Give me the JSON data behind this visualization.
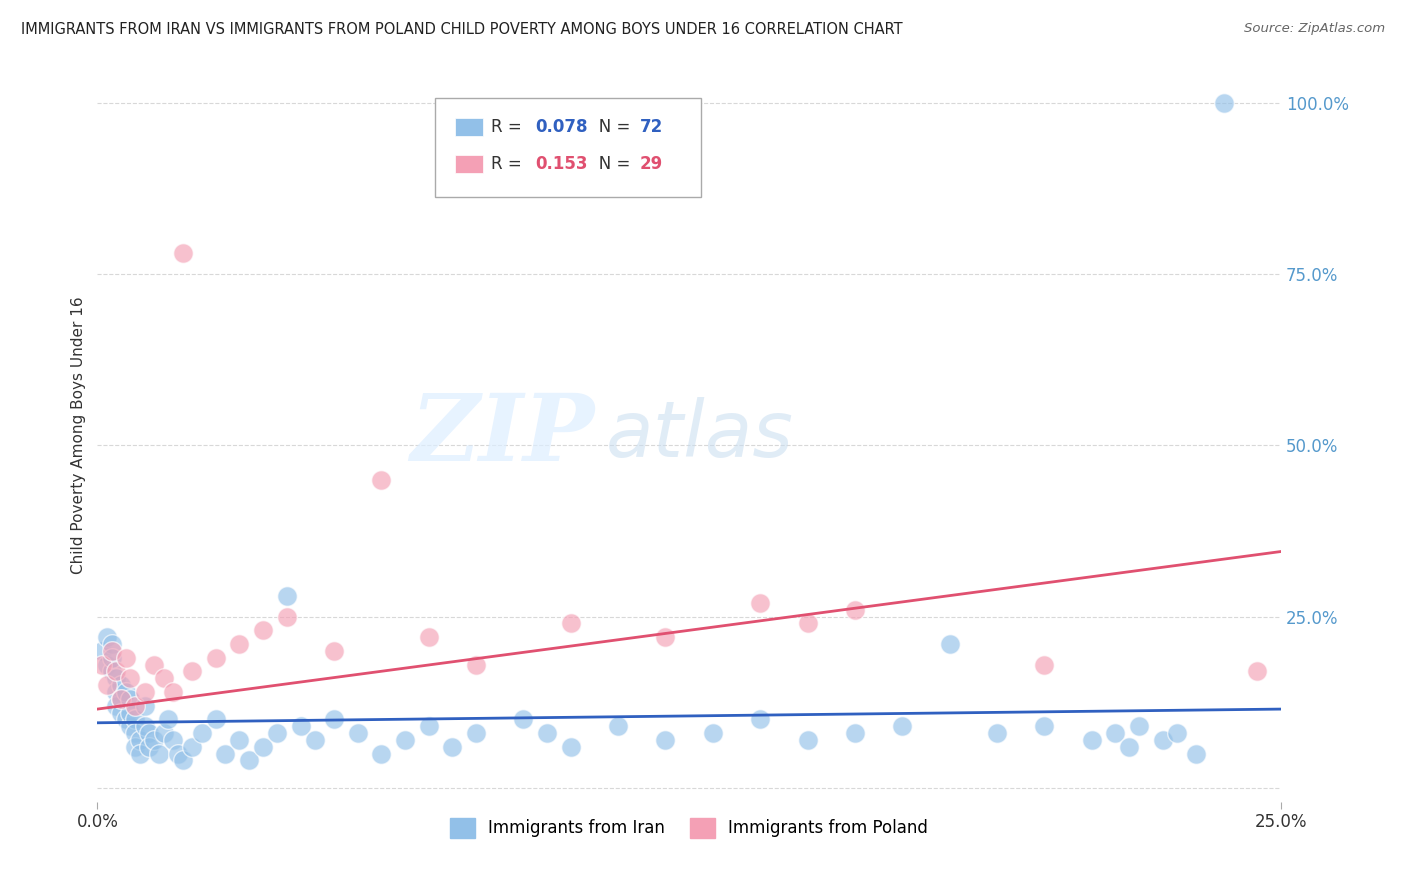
{
  "title": "IMMIGRANTS FROM IRAN VS IMMIGRANTS FROM POLAND CHILD POVERTY AMONG BOYS UNDER 16 CORRELATION CHART",
  "source": "Source: ZipAtlas.com",
  "ylabel": "Child Poverty Among Boys Under 16",
  "xlim": [
    0.0,
    0.25
  ],
  "ylim": [
    -0.02,
    1.05
  ],
  "xtick_labels": [
    "0.0%",
    "25.0%"
  ],
  "xtick_positions": [
    0.0,
    0.25
  ],
  "ytick_positions": [
    0.0,
    0.25,
    0.5,
    0.75,
    1.0
  ],
  "ytick_labels": [
    "",
    "25.0%",
    "50.0%",
    "75.0%",
    "100.0%"
  ],
  "iran_color": "#92c0e8",
  "poland_color": "#f4a0b5",
  "iran_line_color": "#3060c0",
  "poland_line_color": "#e05070",
  "iran_R": 0.078,
  "iran_N": 72,
  "poland_R": 0.153,
  "poland_N": 29,
  "background_color": "#ffffff",
  "grid_color": "#d8d8d8",
  "iran_points_x": [
    0.001,
    0.002,
    0.002,
    0.003,
    0.003,
    0.003,
    0.004,
    0.004,
    0.004,
    0.005,
    0.005,
    0.005,
    0.006,
    0.006,
    0.007,
    0.007,
    0.007,
    0.008,
    0.008,
    0.008,
    0.009,
    0.009,
    0.01,
    0.01,
    0.011,
    0.011,
    0.012,
    0.013,
    0.014,
    0.015,
    0.016,
    0.017,
    0.018,
    0.02,
    0.022,
    0.025,
    0.027,
    0.03,
    0.032,
    0.035,
    0.038,
    0.04,
    0.043,
    0.046,
    0.05,
    0.055,
    0.06,
    0.065,
    0.07,
    0.075,
    0.08,
    0.09,
    0.095,
    0.1,
    0.11,
    0.12,
    0.13,
    0.14,
    0.15,
    0.16,
    0.17,
    0.18,
    0.19,
    0.2,
    0.21,
    0.215,
    0.218,
    0.22,
    0.225,
    0.228,
    0.232,
    0.238
  ],
  "iran_points_y": [
    0.2,
    0.22,
    0.18,
    0.21,
    0.17,
    0.19,
    0.16,
    0.14,
    0.12,
    0.15,
    0.13,
    0.11,
    0.14,
    0.1,
    0.13,
    0.09,
    0.11,
    0.1,
    0.08,
    0.06,
    0.07,
    0.05,
    0.09,
    0.12,
    0.08,
    0.06,
    0.07,
    0.05,
    0.08,
    0.1,
    0.07,
    0.05,
    0.04,
    0.06,
    0.08,
    0.1,
    0.05,
    0.07,
    0.04,
    0.06,
    0.08,
    0.28,
    0.09,
    0.07,
    0.1,
    0.08,
    0.05,
    0.07,
    0.09,
    0.06,
    0.08,
    0.1,
    0.08,
    0.06,
    0.09,
    0.07,
    0.08,
    0.1,
    0.07,
    0.08,
    0.09,
    0.21,
    0.08,
    0.09,
    0.07,
    0.08,
    0.06,
    0.09,
    0.07,
    0.08,
    0.05,
    1.0
  ],
  "poland_points_x": [
    0.001,
    0.002,
    0.003,
    0.004,
    0.005,
    0.006,
    0.007,
    0.008,
    0.01,
    0.012,
    0.014,
    0.016,
    0.018,
    0.02,
    0.025,
    0.03,
    0.035,
    0.04,
    0.05,
    0.06,
    0.07,
    0.08,
    0.1,
    0.12,
    0.14,
    0.15,
    0.16,
    0.2,
    0.245
  ],
  "poland_points_y": [
    0.18,
    0.15,
    0.2,
    0.17,
    0.13,
    0.19,
    0.16,
    0.12,
    0.14,
    0.18,
    0.16,
    0.14,
    0.78,
    0.17,
    0.19,
    0.21,
    0.23,
    0.25,
    0.2,
    0.45,
    0.22,
    0.18,
    0.24,
    0.22,
    0.27,
    0.24,
    0.26,
    0.18,
    0.17
  ],
  "iran_trend_x": [
    0.0,
    0.25
  ],
  "iran_trend_y": [
    0.095,
    0.115
  ],
  "poland_trend_x": [
    0.0,
    0.25
  ],
  "poland_trend_y": [
    0.115,
    0.345
  ]
}
